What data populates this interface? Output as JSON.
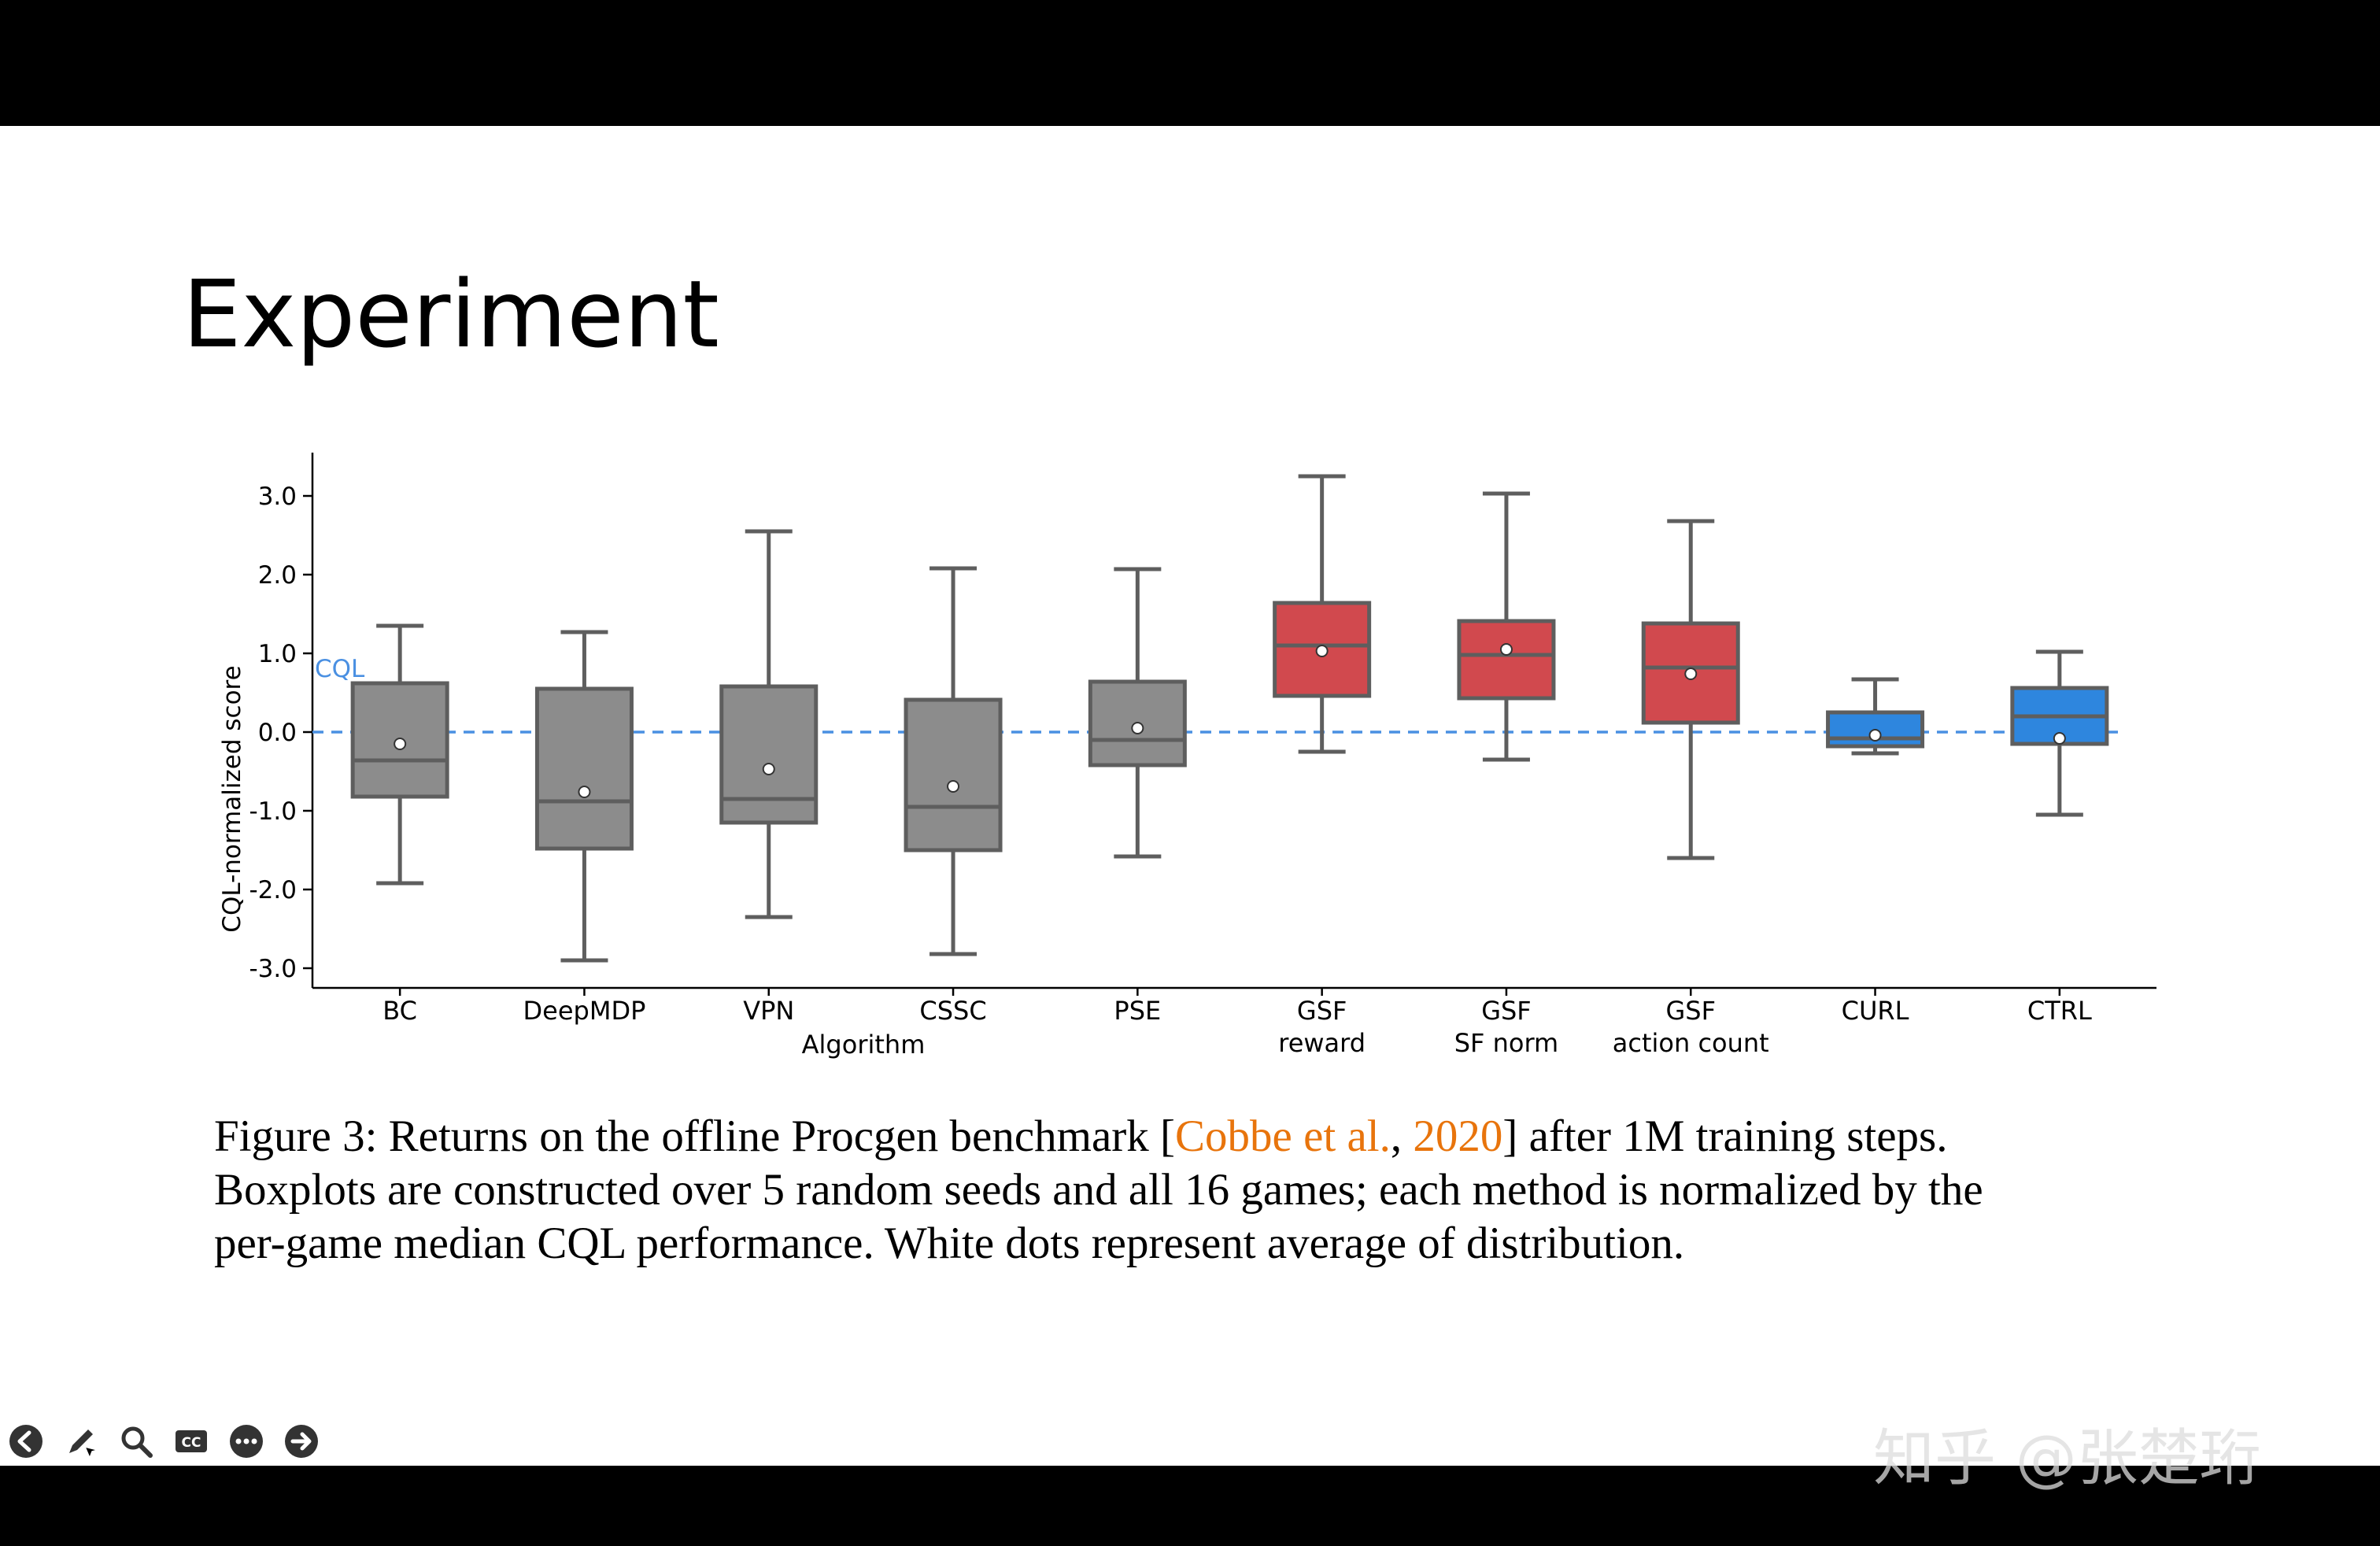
{
  "slide": {
    "title": "Experiment",
    "caption": {
      "line1_a": "Figure 3: Returns on the offline Procgen benchmark [",
      "line1_cite1": "Cobbe et al.",
      "line1_sep": ", ",
      "line1_cite2": "2020",
      "line1_b": "] after 1M training steps.",
      "line2": "Boxplots are constructed over 5 random seeds and all 16 games; each method is normalized by the",
      "line3": "per-game median CQL performance. White dots represent average of distribution."
    },
    "watermark": "知乎 @张楚珩",
    "colors": {
      "gray_box": "#8c8c8c",
      "red_box": "#d1494e",
      "blue_box": "#2e86de",
      "cql_line": "#4a90e2",
      "cite": "#e8740c"
    }
  },
  "toolbar": {
    "icons": [
      "back-arrow-icon",
      "pen-icon",
      "search-icon",
      "closed-caption-icon",
      "more-icon",
      "forward-arrow-icon"
    ]
  },
  "chart_data": {
    "type": "box",
    "xlabel": "Algorithm",
    "ylabel": "CQL-normalized score",
    "ylim": [
      -3.25,
      3.55
    ],
    "yticks": [
      "3.0",
      "2.0",
      "1.0",
      "0.0",
      "-1.0",
      "-2.0",
      "-3.0"
    ],
    "ytick_values": [
      3.0,
      2.0,
      1.0,
      0.0,
      -1.0,
      -2.0,
      -3.0
    ],
    "reference_line": {
      "label": "CQL",
      "value": 0.0
    },
    "boxes": [
      {
        "label": [
          "BC"
        ],
        "whisker_low": -1.92,
        "q1": -0.82,
        "median": -0.36,
        "q3": 0.62,
        "whisker_high": 1.35,
        "mean": -0.15,
        "color": "gray"
      },
      {
        "label": [
          "DeepMDP"
        ],
        "whisker_low": -2.9,
        "q1": -1.48,
        "median": -0.88,
        "q3": 0.55,
        "whisker_high": 1.27,
        "mean": -0.76,
        "color": "gray"
      },
      {
        "label": [
          "VPN"
        ],
        "whisker_low": -2.35,
        "q1": -1.15,
        "median": -0.85,
        "q3": 0.58,
        "whisker_high": 2.55,
        "mean": -0.47,
        "color": "gray"
      },
      {
        "label": [
          "CSSC"
        ],
        "whisker_low": -2.82,
        "q1": -1.5,
        "median": -0.95,
        "q3": 0.41,
        "whisker_high": 2.08,
        "mean": -0.69,
        "color": "gray"
      },
      {
        "label": [
          "PSE"
        ],
        "whisker_low": -1.58,
        "q1": -0.42,
        "median": -0.1,
        "q3": 0.64,
        "whisker_high": 2.07,
        "mean": 0.05,
        "color": "gray"
      },
      {
        "label": [
          "GSF",
          "reward"
        ],
        "whisker_low": -0.25,
        "q1": 0.46,
        "median": 1.1,
        "q3": 1.64,
        "whisker_high": 3.25,
        "mean": 1.03,
        "color": "red"
      },
      {
        "label": [
          "GSF",
          "SF norm"
        ],
        "whisker_low": -0.35,
        "q1": 0.43,
        "median": 0.98,
        "q3": 1.41,
        "whisker_high": 3.03,
        "mean": 1.05,
        "color": "red"
      },
      {
        "label": [
          "GSF",
          "action count"
        ],
        "whisker_low": -1.6,
        "q1": 0.12,
        "median": 0.82,
        "q3": 1.38,
        "whisker_high": 2.68,
        "mean": 0.74,
        "color": "red"
      },
      {
        "label": [
          "CURL"
        ],
        "whisker_low": -0.27,
        "q1": -0.18,
        "median": -0.08,
        "q3": 0.25,
        "whisker_high": 0.67,
        "mean": -0.04,
        "color": "blue"
      },
      {
        "label": [
          "CTRL"
        ],
        "whisker_low": -1.05,
        "q1": -0.15,
        "median": 0.2,
        "q3": 0.56,
        "whisker_high": 1.02,
        "mean": -0.08,
        "color": "blue"
      }
    ]
  }
}
